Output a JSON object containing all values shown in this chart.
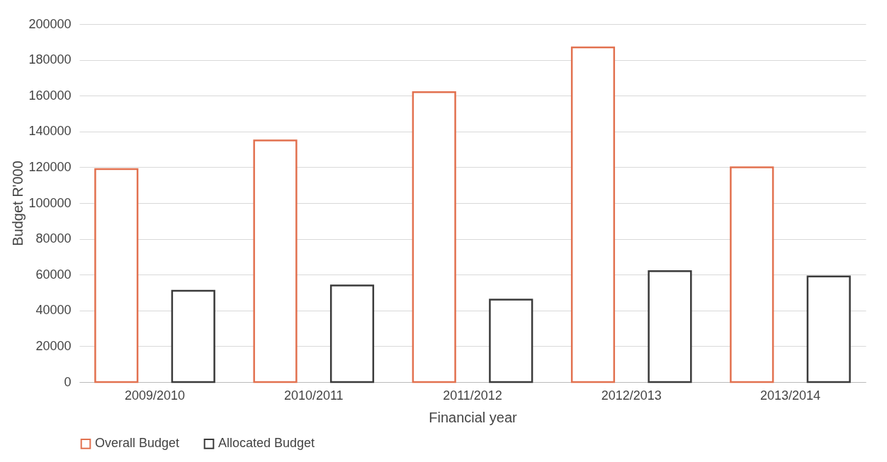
{
  "chart_data": {
    "type": "bar",
    "xlabel": "Financial year",
    "ylabel": "Budget R'000",
    "categories": [
      "2009/2010",
      "2010/2011",
      "2011/2012",
      "2012/2013",
      "2013/2014"
    ],
    "series": [
      {
        "name": "Overall Budget",
        "color": "#e2714f",
        "values": [
          119000,
          135000,
          162000,
          187000,
          120000
        ]
      },
      {
        "name": "Allocated Budget",
        "color": "#3a3a3a",
        "values": [
          51000,
          54000,
          46000,
          62000,
          59000
        ]
      }
    ],
    "ylim": [
      0,
      200000
    ],
    "yticks": [
      0,
      20000,
      40000,
      60000,
      80000,
      100000,
      120000,
      140000,
      160000,
      180000,
      200000
    ],
    "grid": "y",
    "legend": "bottom"
  }
}
